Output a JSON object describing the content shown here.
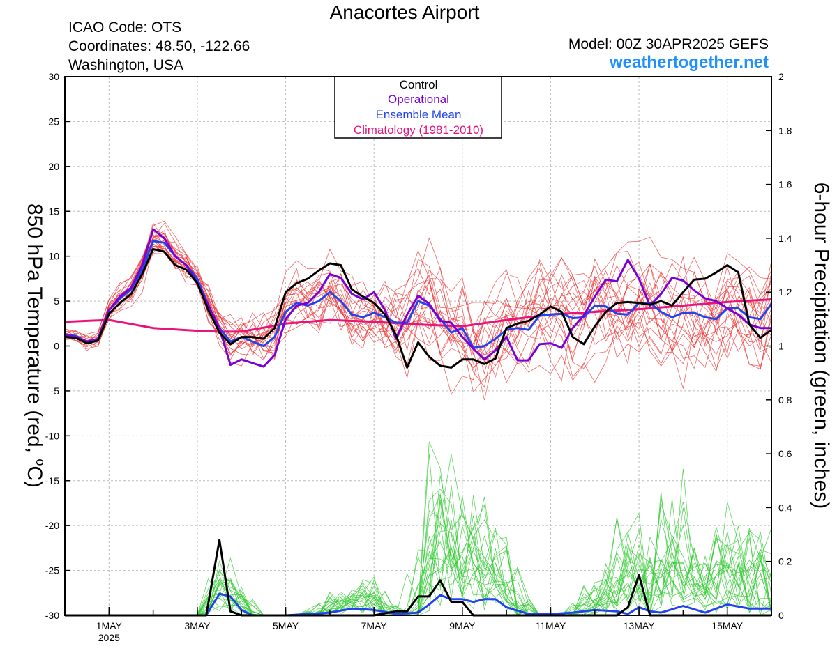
{
  "header": {
    "title": "Anacortes Airport",
    "icao": "ICAO Code: OTS",
    "coordinates": "Coordinates: 48.50, -122.66",
    "location": "Washington, USA",
    "model": "Model: 00Z 30APR2025 GEFS",
    "site": "weathertogether.net"
  },
  "chart_data": {
    "type": "line",
    "xlabel": "",
    "ylabel": "850 hPa Temperature (red, °C)",
    "ylabel_main": "850 hPa Temperature (red, ",
    "ylabel_deg": "o",
    "ylabel_unit": "C)",
    "y2label": "6-hour Precipitation (green, inches)",
    "x_range": [
      0,
      16
    ],
    "ylim": [
      -30,
      30
    ],
    "y2lim": [
      0,
      2
    ],
    "yticks": [
      30,
      25,
      20,
      15,
      10,
      5,
      0,
      -5,
      -10,
      -15,
      -20,
      -25,
      -30
    ],
    "y2ticks": [
      2,
      1.8,
      1.6,
      1.4,
      1.2,
      1,
      0.8,
      0.6,
      0.4,
      0.2,
      0
    ],
    "xticks": [
      {
        "x": 1,
        "label": "1MAY",
        "sub": "2025"
      },
      {
        "x": 3,
        "label": "3MAY"
      },
      {
        "x": 5,
        "label": "5MAY"
      },
      {
        "x": 7,
        "label": "7MAY"
      },
      {
        "x": 9,
        "label": "9MAY"
      },
      {
        "x": 11,
        "label": "11MAY"
      },
      {
        "x": 13,
        "label": "13MAY"
      },
      {
        "x": 15,
        "label": "15MAY"
      }
    ],
    "colors": {
      "control": "#000000",
      "operational": "#7b00d6",
      "ensemble_mean": "#2244ee",
      "climatology": "#e8147c",
      "members_temp": "#ee3030",
      "members_precip": "#33cc33"
    },
    "legend": {
      "placement": "top-center",
      "entries": [
        {
          "label": "Control",
          "color": "#000000"
        },
        {
          "label": "Operational",
          "color": "#7b00d6"
        },
        {
          "label": "Ensemble Mean",
          "color": "#2244ee"
        },
        {
          "label": "Climatology (1981-2010)",
          "color": "#e8147c"
        }
      ]
    },
    "series": [
      {
        "name": "Climatology (1981-2010)",
        "axis": "left",
        "color": "#e8147c",
        "width": 3,
        "x": [
          0,
          1,
          2,
          3,
          3.5,
          4,
          5,
          6,
          7,
          8,
          9,
          10,
          11,
          12,
          13,
          14,
          15,
          16
        ],
        "y": [
          2.7,
          2.9,
          2.0,
          1.7,
          1.6,
          1.6,
          2.5,
          2.9,
          2.7,
          2.4,
          2.2,
          2.9,
          3.5,
          3.8,
          4.1,
          4.5,
          4.9,
          5.2
        ]
      },
      {
        "name": "Control",
        "axis": "left",
        "color": "#000000",
        "width": 3,
        "x": [
          0,
          0.25,
          0.5,
          0.75,
          1,
          1.25,
          1.5,
          1.75,
          2,
          2.25,
          2.5,
          2.75,
          3,
          3.25,
          3.5,
          3.75,
          4,
          4.25,
          4.5,
          4.75,
          5,
          5.25,
          5.5,
          5.75,
          6,
          6.25,
          6.5,
          6.75,
          7,
          7.25,
          7.5,
          7.75,
          8,
          8.25,
          8.5,
          8.75,
          9,
          9.25,
          9.5,
          9.75,
          10,
          10.25,
          10.5,
          10.75,
          11,
          11.25,
          11.5,
          11.75,
          12,
          12.25,
          12.5,
          12.75,
          13,
          13.25,
          13.5,
          13.75,
          14,
          14.25,
          14.5,
          14.75,
          15,
          15.25,
          15.5,
          15.75,
          16
        ],
        "y": [
          1.0,
          0.9,
          0.3,
          0.6,
          3.6,
          4.8,
          5.8,
          8.0,
          10.8,
          10.5,
          9.0,
          8.5,
          7.0,
          4.0,
          1.5,
          0.2,
          1.0,
          1.0,
          0.8,
          2.0,
          6.0,
          7.0,
          7.5,
          8.4,
          9.2,
          9.0,
          6.3,
          5.5,
          4.8,
          3.5,
          1.2,
          -2.4,
          0.4,
          -1.2,
          -2.2,
          -2.4,
          -1.5,
          -1.5,
          -2.0,
          -1.4,
          2.0,
          2.5,
          2.8,
          3.5,
          4.4,
          3.8,
          1.0,
          0.2,
          2.2,
          3.8,
          4.8,
          4.9,
          4.8,
          4.6,
          5.0,
          4.5,
          6.0,
          7.4,
          7.5,
          8.2,
          9.0,
          8.2,
          2.4,
          0.9,
          1.8
        ]
      },
      {
        "name": "Operational",
        "axis": "left",
        "color": "#7b00d6",
        "width": 3,
        "x": [
          0,
          0.25,
          0.5,
          0.75,
          1,
          1.25,
          1.5,
          1.75,
          2,
          2.25,
          2.5,
          2.75,
          3,
          3.25,
          3.5,
          3.75,
          4,
          4.25,
          4.5,
          4.75,
          5,
          5.25,
          5.5,
          5.75,
          6,
          6.25,
          6.5,
          6.75,
          7,
          7.25,
          7.5,
          7.75,
          8,
          8.25,
          8.5,
          8.75,
          9,
          9.25,
          9.5,
          9.75,
          10,
          10.25,
          10.5,
          10.75,
          11,
          11.25,
          11.5,
          11.75,
          12,
          12.25,
          12.5,
          12.75,
          13,
          13.25,
          13.5,
          13.75,
          14,
          14.25,
          14.5,
          14.75,
          15,
          15.25,
          15.5,
          15.75,
          16
        ],
        "y": [
          1.2,
          1.0,
          0.5,
          0.7,
          4.0,
          5.5,
          6.5,
          9.0,
          13.0,
          12.0,
          10.0,
          9.0,
          7.0,
          4.5,
          2.0,
          -2.1,
          -1.5,
          -1.9,
          -2.3,
          -1.0,
          3.0,
          4.5,
          4.8,
          6.0,
          8.0,
          7.6,
          5.8,
          5.2,
          6.0,
          4.0,
          0.8,
          3.5,
          5.6,
          4.7,
          2.8,
          2.6,
          1.0,
          -0.3,
          -1.5,
          -0.5,
          1.0,
          -1.6,
          -1.6,
          0.2,
          0.3,
          -0.2,
          2.0,
          3.4,
          5.5,
          7.4,
          7.2,
          9.6,
          7.5,
          4.5,
          5.8,
          7.6,
          7.3,
          6.2,
          5.3,
          5.0,
          4.2,
          3.5,
          2.4,
          2.0,
          2.0
        ]
      },
      {
        "name": "Ensemble Mean",
        "axis": "left",
        "color": "#2244ee",
        "width": 3,
        "x": [
          0,
          0.25,
          0.5,
          0.75,
          1,
          1.25,
          1.5,
          1.75,
          2,
          2.25,
          2.5,
          2.75,
          3,
          3.25,
          3.5,
          3.75,
          4,
          4.25,
          4.5,
          4.75,
          5,
          5.25,
          5.5,
          5.75,
          6,
          6.25,
          6.5,
          6.75,
          7,
          7.25,
          7.5,
          7.75,
          8,
          8.25,
          8.5,
          8.75,
          9,
          9.25,
          9.5,
          9.75,
          10,
          10.25,
          10.5,
          10.75,
          11,
          11.25,
          11.5,
          11.75,
          12,
          12.25,
          12.5,
          12.75,
          13,
          13.25,
          13.5,
          13.75,
          14,
          14.25,
          14.5,
          14.75,
          15,
          15.25,
          15.5,
          15.75,
          16
        ],
        "y": [
          1.3,
          1.1,
          0.5,
          0.8,
          4.0,
          5.3,
          6.3,
          8.5,
          11.7,
          11.5,
          10.0,
          9.0,
          7.5,
          4.5,
          2.0,
          0.5,
          1.0,
          0.5,
          0.0,
          1.0,
          3.8,
          4.8,
          4.5,
          5.0,
          6.0,
          5.0,
          3.5,
          3.2,
          3.7,
          3.2,
          2.6,
          2.6,
          5.0,
          4.5,
          3.0,
          1.5,
          2.0,
          -0.2,
          0.0,
          0.8,
          1.8,
          2.0,
          1.8,
          3.4,
          3.5,
          3.6,
          3.1,
          3.2,
          4.5,
          4.4,
          3.6,
          3.5,
          4.8,
          4.8,
          3.8,
          3.2,
          3.7,
          3.7,
          3.2,
          3.0,
          4.2,
          4.2,
          3.2,
          3.0,
          4.7
        ]
      },
      {
        "name": "Control",
        "axis": "right",
        "color": "#000000",
        "width": 3,
        "x": [
          0,
          3.2,
          3.5,
          3.75,
          4,
          4.25,
          5,
          6,
          7,
          7.5,
          7.75,
          8,
          8.25,
          8.5,
          8.75,
          9,
          9.25,
          10,
          11,
          12,
          12.25,
          12.5,
          12.75,
          13,
          13.25,
          14,
          15,
          16
        ],
        "y": [
          0,
          0,
          0.28,
          0.015,
          0,
          0,
          0,
          0,
          0,
          0.015,
          0.015,
          0.07,
          0.07,
          0.13,
          0.05,
          0.05,
          0,
          0,
          0,
          0,
          0,
          0,
          0.03,
          0.15,
          0,
          0,
          0,
          0
        ]
      },
      {
        "name": "Ensemble Mean",
        "axis": "right",
        "color": "#2244ee",
        "width": 3,
        "x": [
          0,
          3.2,
          3.5,
          3.75,
          4,
          4.25,
          5,
          5.5,
          6,
          6.5,
          7,
          7.5,
          8,
          8.25,
          8.5,
          8.75,
          9,
          9.25,
          9.5,
          9.75,
          10,
          10.5,
          11,
          11.5,
          12,
          12.5,
          12.75,
          13,
          13.25,
          13.5,
          14,
          14.5,
          15,
          15.5,
          16
        ],
        "y": [
          0,
          0,
          0.08,
          0.07,
          0.02,
          0,
          0,
          0.005,
          0.01,
          0.025,
          0.02,
          0.005,
          0.01,
          0.04,
          0.075,
          0.06,
          0.06,
          0.05,
          0.06,
          0.06,
          0.03,
          0.005,
          0.005,
          0.01,
          0.02,
          0.015,
          0.005,
          0.03,
          0.015,
          0.01,
          0.035,
          0.01,
          0.04,
          0.025,
          0.025
        ]
      }
    ]
  }
}
